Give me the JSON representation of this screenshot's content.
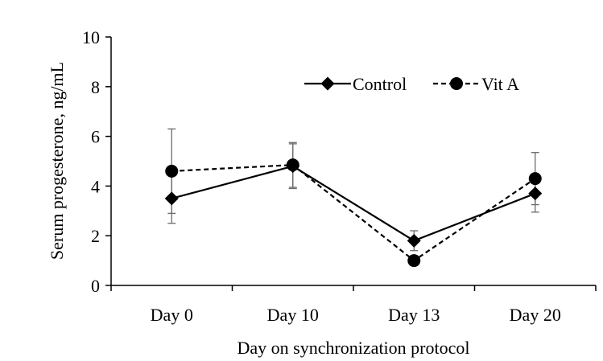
{
  "chart_data": {
    "type": "line",
    "title": "",
    "xlabel": "Day on synchronization protocol",
    "ylabel": "Serum progesterone, ng/mL",
    "categories": [
      "Day 0",
      "Day 10",
      "Day 13",
      "Day 20"
    ],
    "ylim": [
      0,
      10
    ],
    "yticks": [
      0,
      2,
      4,
      6,
      8,
      10
    ],
    "grid": false,
    "legend": "top-right",
    "series": [
      {
        "name": "Control",
        "marker": "diamond",
        "line_style": "solid",
        "color": "#000000",
        "values": [
          3.5,
          4.8,
          1.8,
          3.7
        ],
        "error": [
          1.0,
          0.9,
          0.4,
          0.75
        ]
      },
      {
        "name": "Vit A",
        "marker": "circle",
        "line_style": "dashed",
        "color": "#000000",
        "values": [
          4.6,
          4.85,
          1.0,
          4.3
        ],
        "error": [
          1.7,
          0.9,
          0.2,
          1.05
        ]
      }
    ]
  }
}
